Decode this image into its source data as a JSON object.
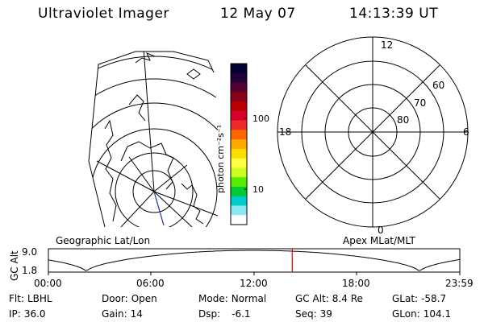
{
  "header": {
    "instrument": "Ultraviolet Imager",
    "date": "12 May 07",
    "time": "14:13:39 UT"
  },
  "colorbar": {
    "unit_label": "photon cm⁻²s⁻¹",
    "tick_labels": [
      "100",
      "10"
    ],
    "colors": [
      "#000033",
      "#22003a",
      "#550030",
      "#8a0018",
      "#b80000",
      "#d8002a",
      "#ee2b2b",
      "#ff6600",
      "#ffa800",
      "#ffdf00",
      "#ffff44",
      "#cfff22",
      "#55ee00",
      "#00cc33",
      "#00cccc",
      "#88e8f4",
      "#ffffff"
    ]
  },
  "polar_plot": {
    "mlt_labels": [
      "12",
      "18",
      "6",
      "0"
    ],
    "lat_labels": [
      "60",
      "70",
      "80"
    ]
  },
  "timeline": {
    "left_title": "Geographic Lat/Lon",
    "right_title": "Apex MLat/MLT",
    "ylabel": "GC Alt",
    "ytick_labels": [
      "9.0",
      "1.8"
    ],
    "xtick_labels": [
      "00:00",
      "06:00",
      "12:00",
      "18:00",
      "23:59"
    ],
    "marker_color": "#e00000"
  },
  "info": {
    "flt": {
      "label": "Flt:",
      "value": "LBHL"
    },
    "ip": {
      "label": "IP:",
      "value": "36.0"
    },
    "door": {
      "label": "Door:",
      "value": "Open"
    },
    "gain": {
      "label": "Gain:",
      "value": "14"
    },
    "mode": {
      "label": "Mode:",
      "value": "Normal"
    },
    "dsp": {
      "label": "Dsp:",
      "value": "-6.1"
    },
    "gcalt": {
      "label": "GC Alt:",
      "value": "8.4 Re"
    },
    "seq": {
      "label": "Seq:",
      "value": "39"
    },
    "glat": {
      "label": "GLat:",
      "value": "-58.7"
    },
    "glon": {
      "label": "GLon:",
      "value": "104.1"
    }
  }
}
